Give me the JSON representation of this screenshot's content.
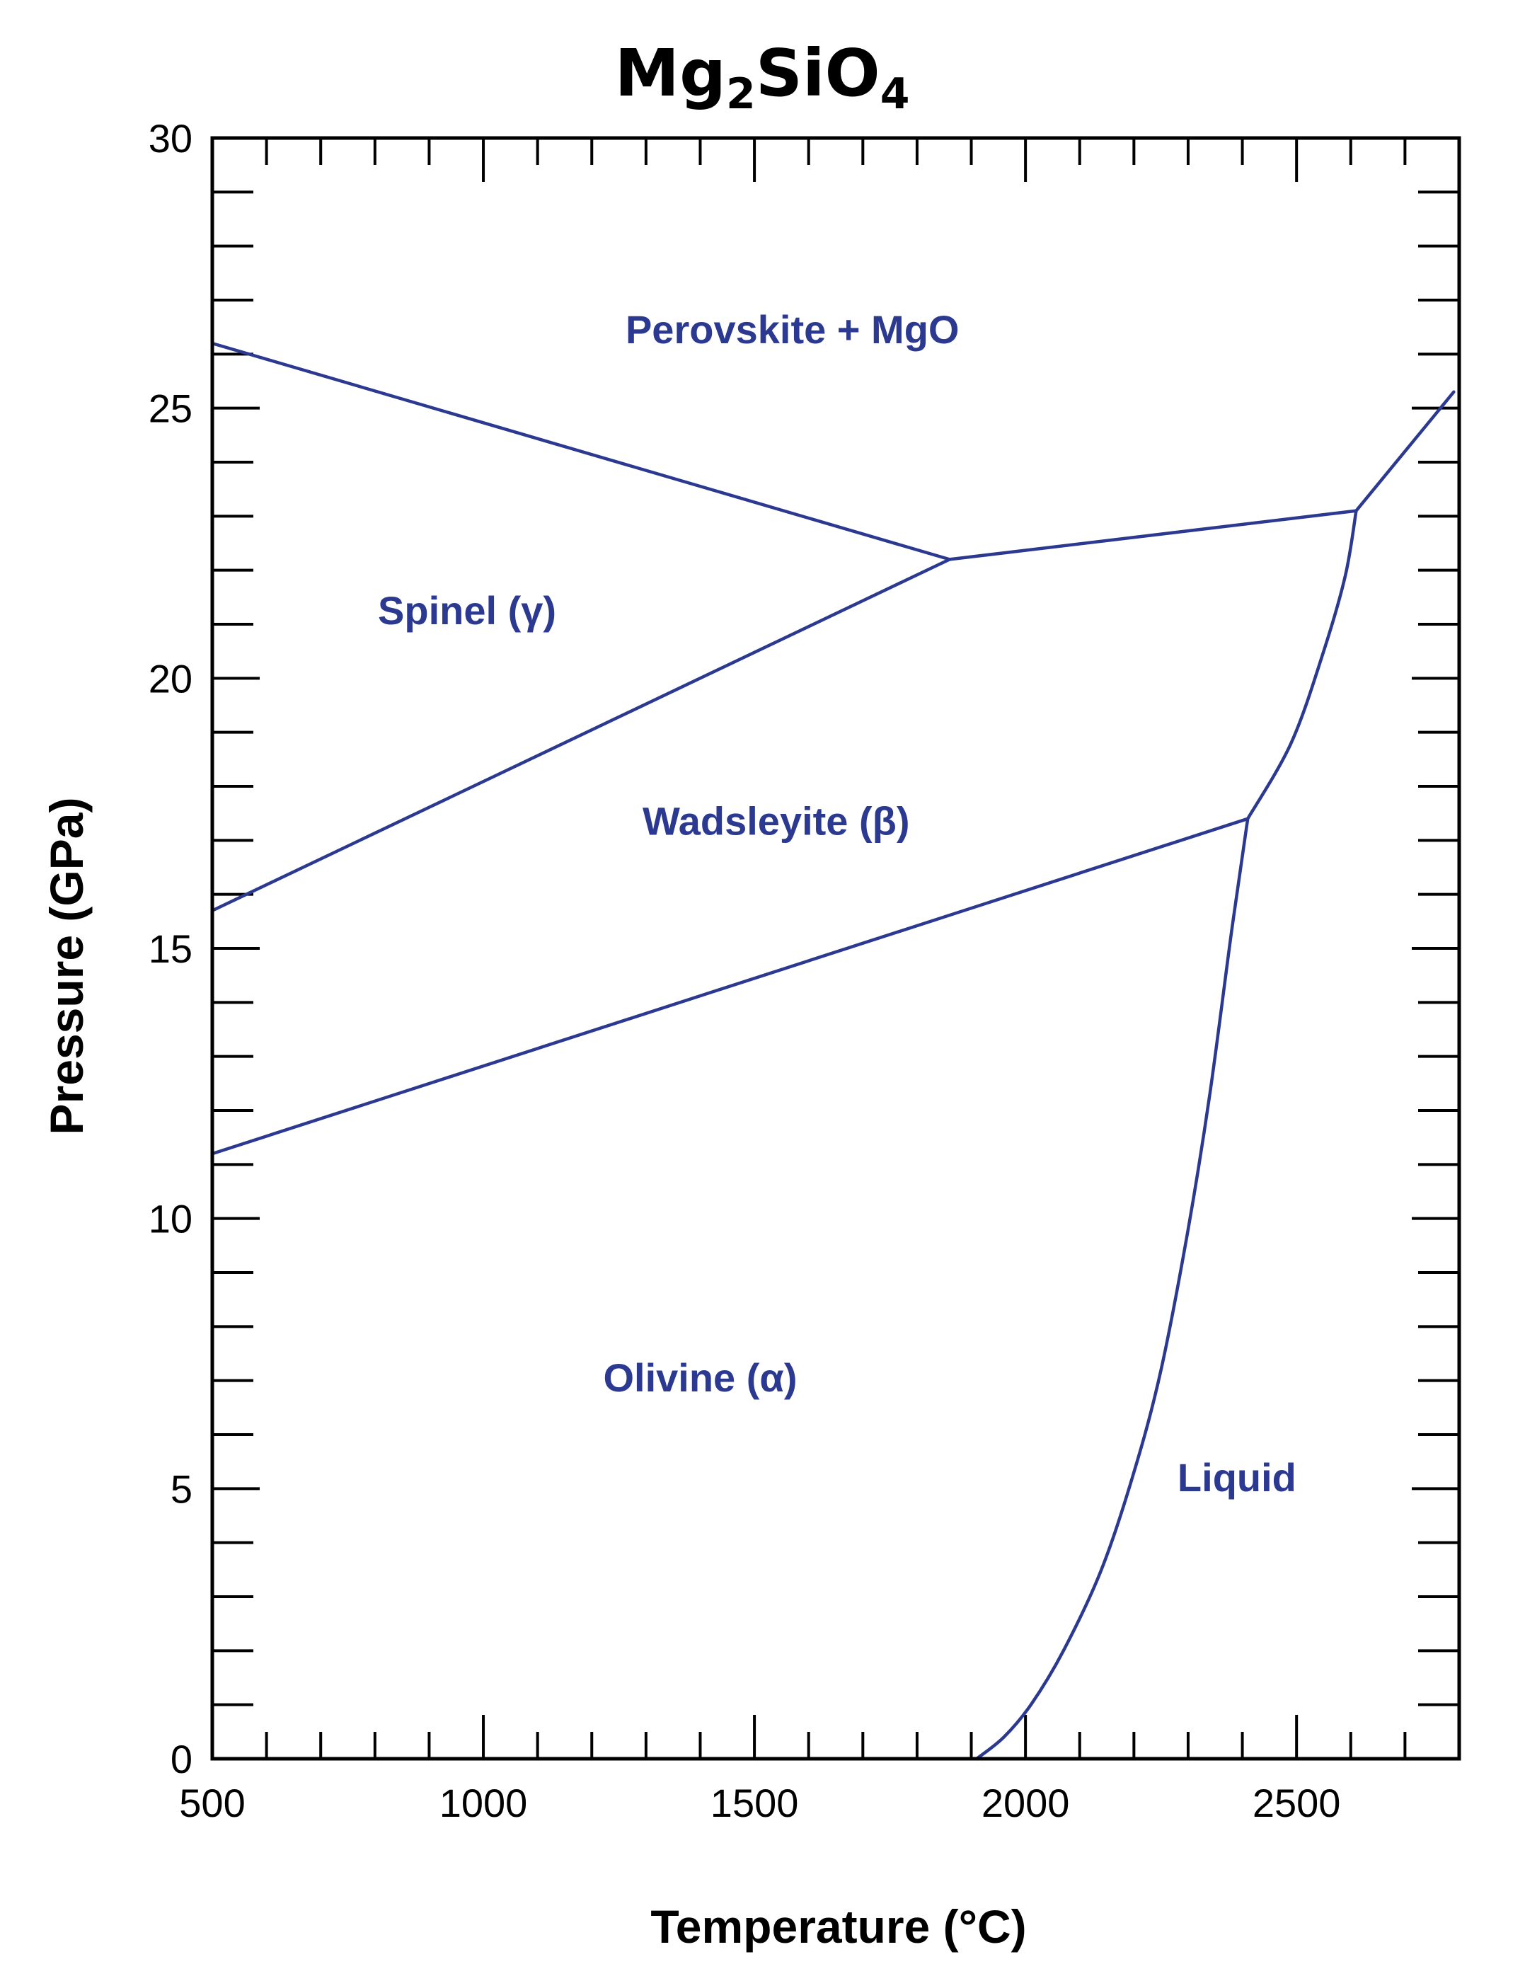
{
  "chart_data": {
    "type": "line",
    "title_main": "Mg",
    "title_sub1": "2",
    "title_mid": "SiO",
    "title_sub2": "4",
    "xlabel": "Temperature (°C)",
    "ylabel": "Pressure (GPa)",
    "xlim": [
      500,
      2800
    ],
    "ylim": [
      0,
      30
    ],
    "x_ticks": [
      500,
      1000,
      1500,
      2000,
      2500
    ],
    "y_ticks": [
      0,
      5,
      10,
      15,
      20,
      25,
      30
    ],
    "x_minor_step": 100,
    "y_minor_step": 1,
    "grid": false,
    "line_color": "#2b3990",
    "regions": [
      {
        "label": "Perovskite + MgO",
        "x": 1570,
        "y": 26.2
      },
      {
        "label": "Spinel (γ)",
        "x": 970,
        "y": 21.0
      },
      {
        "label": "Wadsleyite (β)",
        "x": 1540,
        "y": 17.1
      },
      {
        "label": "Olivine (α)",
        "x": 1400,
        "y": 6.8
      },
      {
        "label": "Liquid",
        "x": 2390,
        "y": 4.95
      }
    ],
    "series": [
      {
        "points": [
          [
            500,
            26.2
          ],
          [
            1860,
            22.2
          ]
        ]
      },
      {
        "points": [
          [
            500,
            15.7
          ],
          [
            1860,
            22.2
          ]
        ]
      },
      {
        "points": [
          [
            1860,
            22.2
          ],
          [
            2610,
            23.1
          ]
        ]
      },
      {
        "points": [
          [
            2610,
            23.1
          ],
          [
            2790,
            25.3
          ]
        ]
      },
      {
        "points": [
          [
            500,
            11.2
          ],
          [
            2410,
            17.4
          ]
        ]
      },
      {
        "points": [
          [
            2410,
            17.4
          ],
          [
            2490,
            18.8
          ],
          [
            2550,
            20.5
          ],
          [
            2590,
            21.9
          ],
          [
            2610,
            23.1
          ]
        ]
      },
      {
        "points": [
          [
            1910,
            0.0
          ],
          [
            1960,
            0.4
          ],
          [
            2010,
            1.0
          ],
          [
            2070,
            2.0
          ],
          [
            2140,
            3.5
          ],
          [
            2200,
            5.3
          ],
          [
            2250,
            7.2
          ],
          [
            2300,
            9.8
          ],
          [
            2340,
            12.3
          ],
          [
            2380,
            15.3
          ],
          [
            2410,
            17.4
          ]
        ]
      }
    ]
  }
}
